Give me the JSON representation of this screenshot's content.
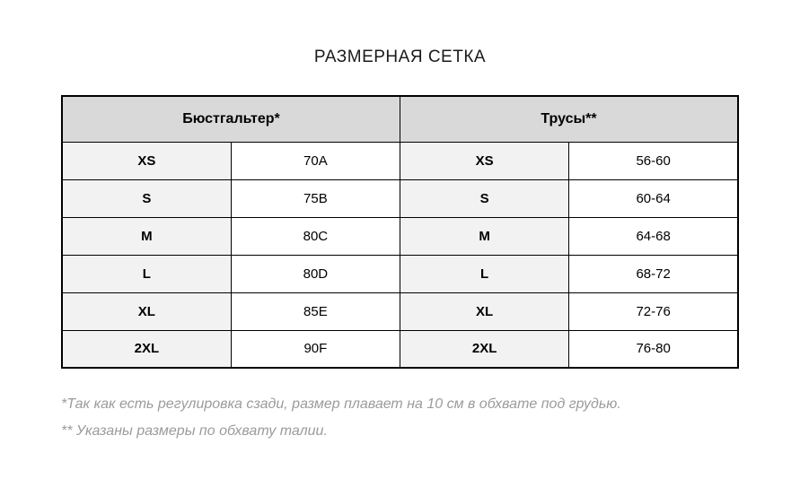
{
  "page": {
    "title": "РАЗМЕРНАЯ СЕТКА"
  },
  "table": {
    "headers": {
      "bra": "Бюстгальтер*",
      "panties": "Трусы**"
    },
    "rows": [
      {
        "bra_size": "XS",
        "bra_value": "70A",
        "panty_size": "XS",
        "panty_value": "56-60"
      },
      {
        "bra_size": "S",
        "bra_value": "75B",
        "panty_size": "S",
        "panty_value": "60-64"
      },
      {
        "bra_size": "M",
        "bra_value": "80C",
        "panty_size": "M",
        "panty_value": "64-68"
      },
      {
        "bra_size": "L",
        "bra_value": "80D",
        "panty_size": "L",
        "panty_value": "68-72"
      },
      {
        "bra_size": "XL",
        "bra_value": "85E",
        "panty_size": "XL",
        "panty_value": "72-76"
      },
      {
        "bra_size": "2XL",
        "bra_value": "90F",
        "panty_size": "2XL",
        "panty_value": "76-80"
      }
    ]
  },
  "footnotes": [
    "*Так как есть регулировка сзади, размер плавает на 10 см в обхвате под грудью.",
    "** Указаны размеры по обхвату талии."
  ],
  "colors": {
    "header_bg": "#d9d9d9",
    "size_cell_bg": "#f2f2f2",
    "value_cell_bg": "#ffffff",
    "border": "#000000",
    "title_text": "#1a1a1a",
    "footnote_text": "#9b9b9b"
  }
}
